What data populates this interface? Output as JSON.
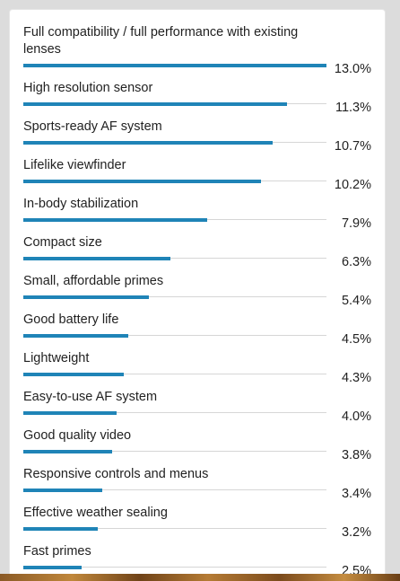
{
  "chart_data": {
    "type": "bar",
    "orientation": "horizontal",
    "title": "",
    "xlabel": "",
    "ylabel": "",
    "categories": [
      "Full compatibility / full performance with existing lenses",
      "High resolution sensor",
      "Sports-ready AF system",
      "Lifelike viewfinder",
      "In-body stabilization",
      "Compact size",
      "Small, affordable primes",
      "Good battery life",
      "Lightweight",
      "Easy-to-use AF system",
      "Good quality video",
      "Responsive controls and menus",
      "Effective weather sealing",
      "Fast primes"
    ],
    "values": [
      13.0,
      11.3,
      10.7,
      10.2,
      7.9,
      6.3,
      5.4,
      4.5,
      4.3,
      4.0,
      3.8,
      3.4,
      3.2,
      2.5
    ],
    "value_labels": [
      "13.0%",
      "11.3%",
      "10.7%",
      "10.2%",
      "7.9%",
      "6.3%",
      "5.4%",
      "4.5%",
      "4.3%",
      "4.0%",
      "3.8%",
      "3.4%",
      "3.2%",
      "2.5%"
    ],
    "unit": "%",
    "xlim": [
      0,
      13.0
    ],
    "grid": false,
    "legend": "none",
    "colors": {
      "bar": "#1f84b7",
      "track": "#d6d6d6",
      "text": "#222222",
      "card": "#ffffff"
    }
  }
}
